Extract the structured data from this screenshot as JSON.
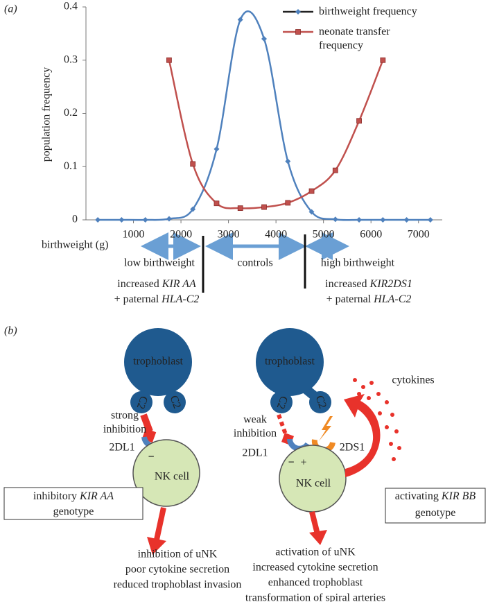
{
  "panel_labels": [
    "(a)",
    "(b)"
  ],
  "chart_data": {
    "type": "line",
    "x_label": "birthweight (g)",
    "y_label": "population frequency",
    "x": [
      250,
      750,
      1250,
      1750,
      2250,
      2750,
      3250,
      3750,
      4250,
      4750,
      5250,
      5750,
      6250,
      6750,
      7250
    ],
    "series": [
      {
        "name": "birthweight frequency",
        "color": "#4f81bd",
        "marker": "diamond",
        "values": [
          0,
          0,
          0,
          0.002,
          0.02,
          0.133,
          0.376,
          0.34,
          0.11,
          0.015,
          0.001,
          0,
          0,
          0,
          0
        ]
      },
      {
        "name": "neonate transfer frequency",
        "color": "#c0504d",
        "marker": "square",
        "values": [
          null,
          null,
          null,
          0.3,
          0.105,
          0.031,
          0.022,
          0.024,
          0.032,
          0.054,
          0.093,
          0.186,
          0.3,
          null,
          null
        ]
      }
    ],
    "xlim": [
      0,
      7500
    ],
    "ylim": [
      0,
      0.4
    ],
    "xticks": [
      1000,
      2000,
      3000,
      4000,
      5000,
      6000,
      7000
    ],
    "yticks": [
      0,
      0.1,
      0.2,
      0.3,
      0.4
    ],
    "grid": false,
    "legend": "top-right"
  },
  "annotations": {
    "low": "low birthweight",
    "controls": "controls",
    "high": "high birthweight",
    "low_note": [
      [
        {
          "text": "increased "
        },
        {
          "text": "KIR AA",
          "italic": true
        }
      ],
      [
        {
          "text": "+ paternal "
        },
        {
          "text": "HLA-C2",
          "italic": true
        }
      ]
    ],
    "high_note": [
      [
        {
          "text": "increased "
        },
        {
          "text": "KIR2DS1",
          "italic": true
        }
      ],
      [
        {
          "text": "+ paternal "
        },
        {
          "text": "HLA-C2",
          "italic": true
        }
      ]
    ]
  },
  "diagram": {
    "left": {
      "trophoblast": "trophoblast",
      "ligands": [
        "C2",
        "C2"
      ],
      "signal": [
        "strong",
        "inhibition"
      ],
      "receptor": "2DL1",
      "receptor_sign": "−",
      "cell": "NK cell",
      "genotype": [
        [
          {
            "text": "inhibitory "
          },
          {
            "text": "KIR AA",
            "italic": true
          }
        ],
        [
          {
            "text": "genotype"
          }
        ]
      ],
      "outcomes": [
        "inhibition of uNK",
        "poor cytokine secretion",
        "reduced trophoblast invasion"
      ]
    },
    "right": {
      "trophoblast": "trophoblast",
      "ligands": [
        "C2",
        "C2"
      ],
      "signal": [
        "weak",
        "inhibition"
      ],
      "receptor": "2DL1",
      "receptor_sign": "−",
      "activating_receptor": "2DS1",
      "activating_sign": "+",
      "cell": "NK cell",
      "cytokines": "cytokines",
      "genotype": [
        [
          {
            "text": "activating "
          },
          {
            "text": "KIR BB",
            "italic": true
          }
        ],
        [
          {
            "text": "genotype"
          }
        ]
      ],
      "outcomes": [
        "activation of uNK",
        "increased cytokine secretion",
        "enhanced trophoblast",
        "transformation of spiral arteries"
      ]
    }
  }
}
